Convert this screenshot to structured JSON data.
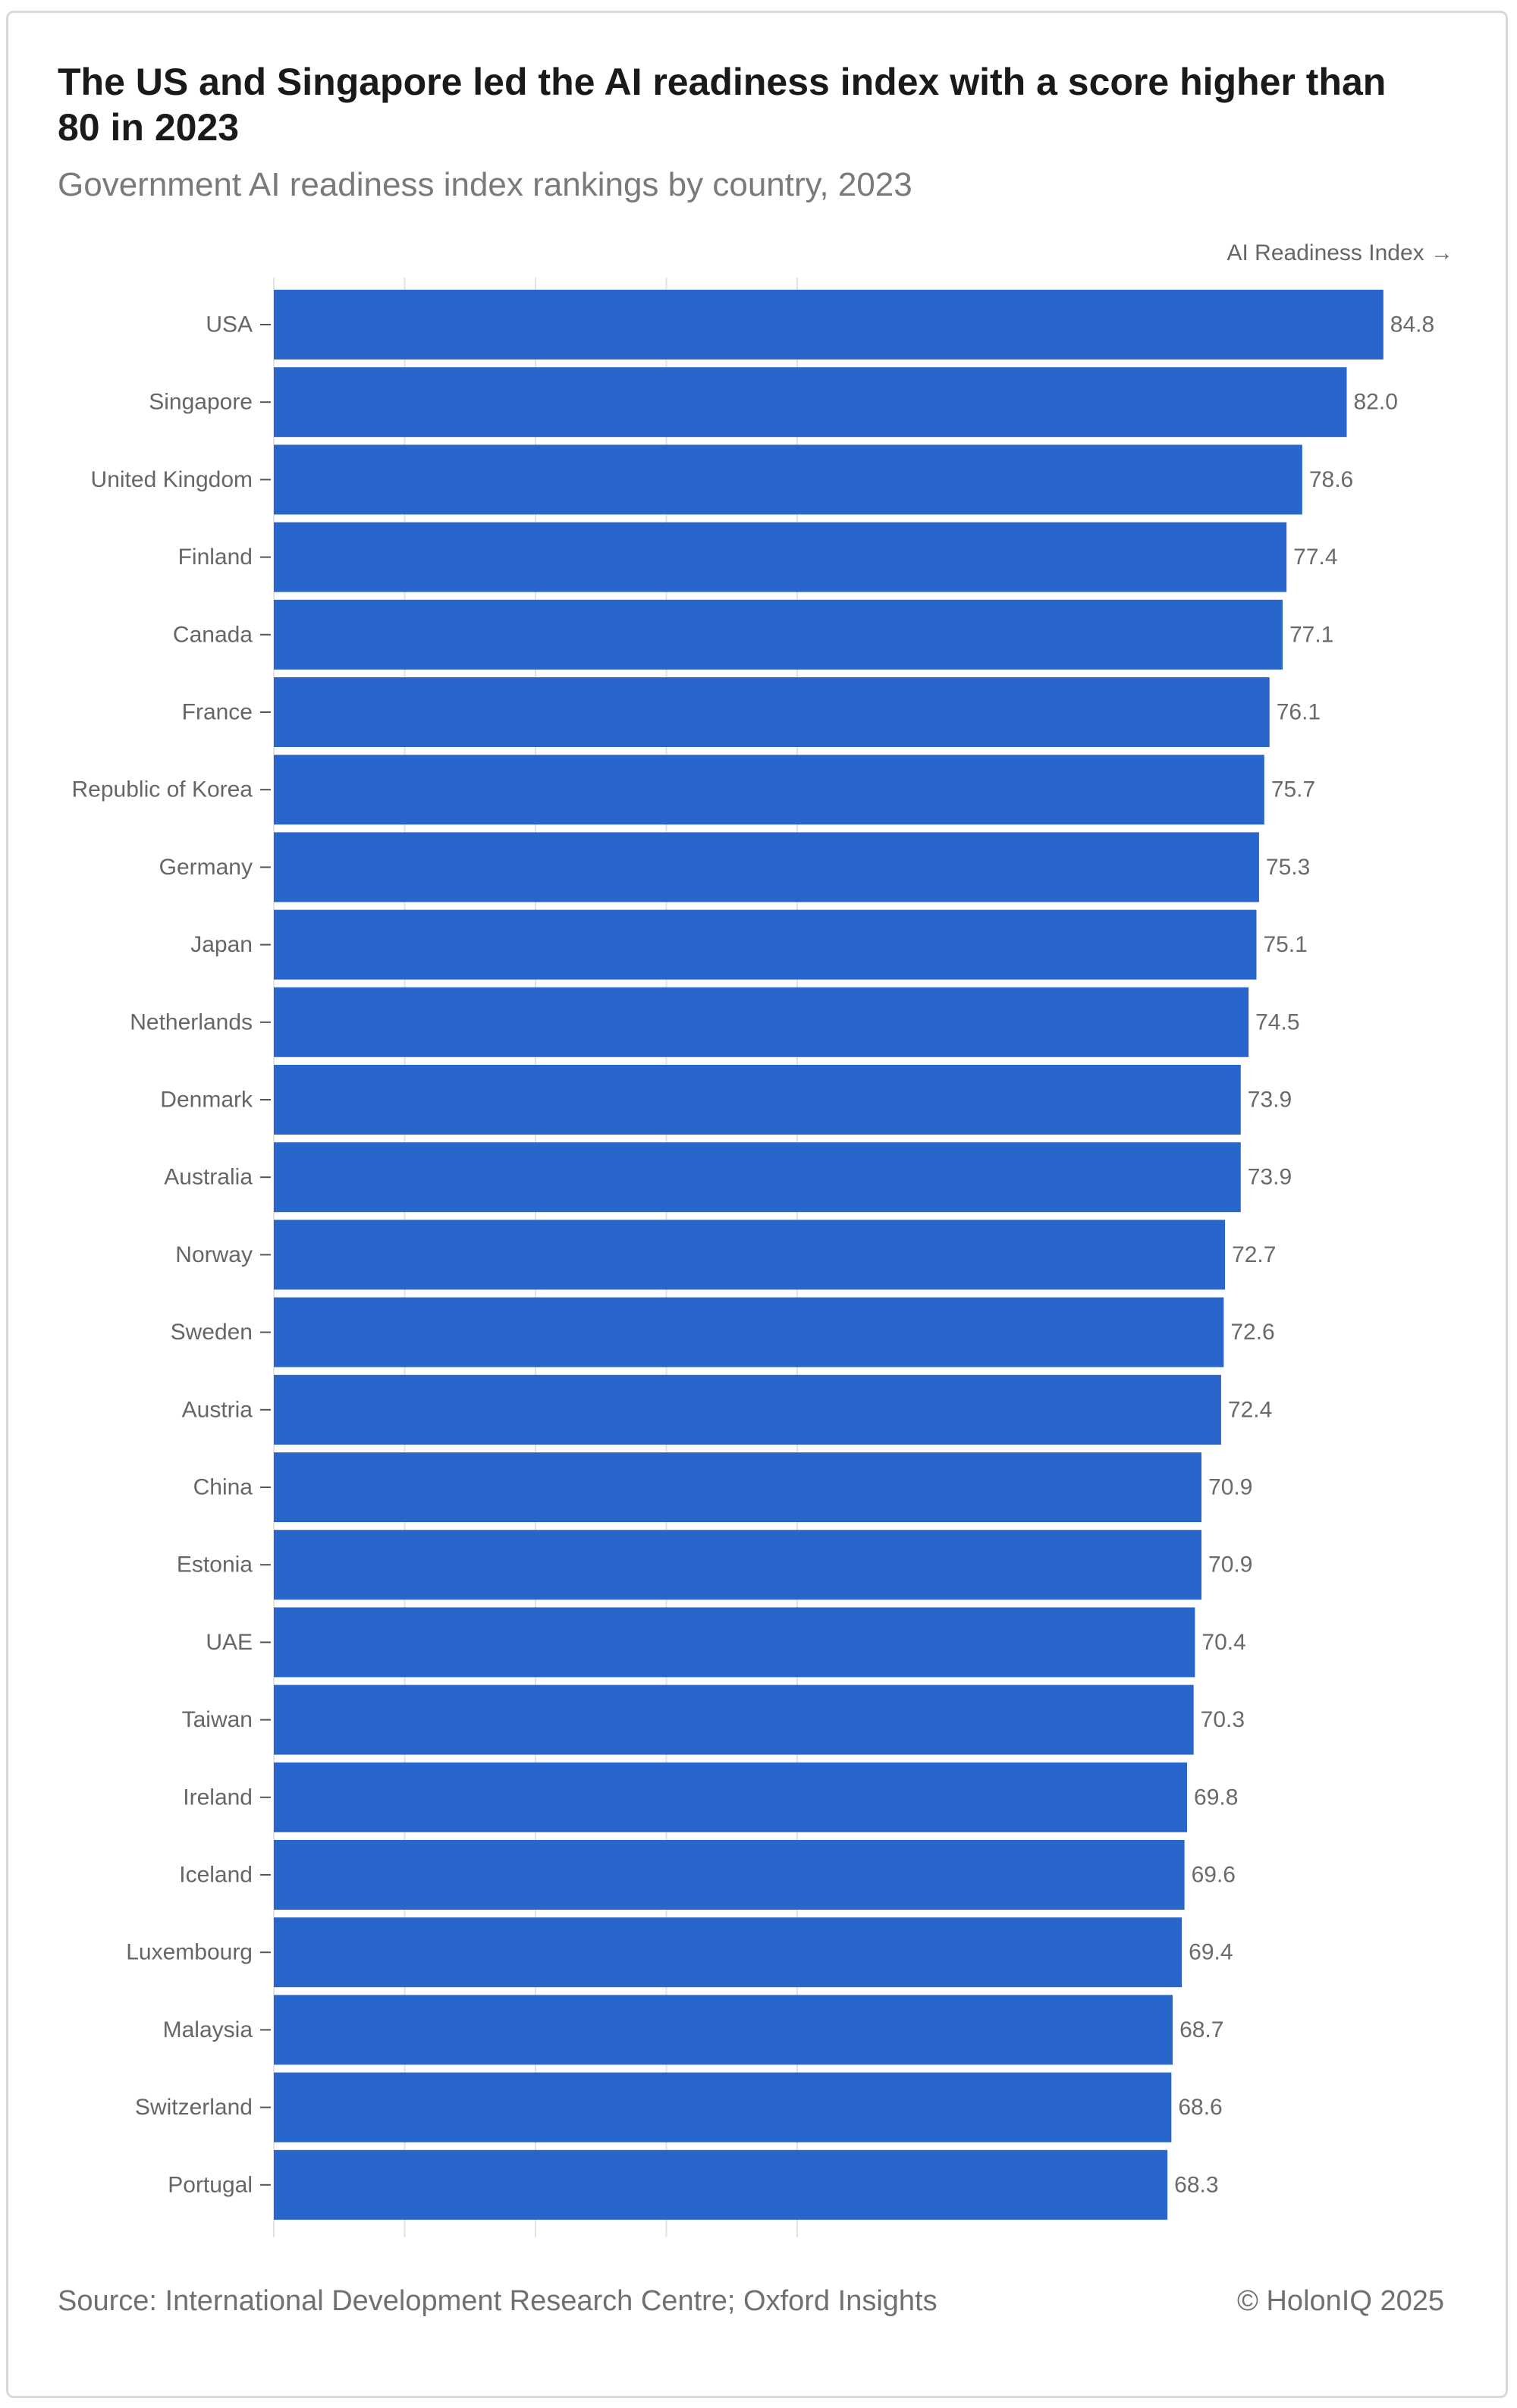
{
  "header": {
    "title": "The US and Singapore led the AI readiness index with a score higher than 80 in 2023",
    "subtitle": "Government AI readiness index rankings by country, 2023"
  },
  "footer": {
    "source": "Source: International Development Research Centre; Oxford Insights",
    "credit": "© HolonIQ 2025"
  },
  "colors": {
    "bar": "#2966cc",
    "grid": "#e3e3e3",
    "tick_label": "#666666",
    "value_label": "#6a6a6a"
  },
  "chart_data": {
    "type": "bar",
    "orientation": "horizontal",
    "title": "The US and Singapore led the AI readiness index with a score higher than 80 in 2023",
    "subtitle": "Government AI readiness index rankings by country, 2023",
    "xlabel": "AI Readiness Index →",
    "ylabel": "",
    "xlim": [
      0,
      100
    ],
    "grid": true,
    "legend": "none",
    "categories": [
      "USA",
      "Singapore",
      "United Kingdom",
      "Finland",
      "Canada",
      "France",
      "Republic of Korea",
      "Germany",
      "Japan",
      "Netherlands",
      "Denmark",
      "Australia",
      "Norway",
      "Sweden",
      "Austria",
      "China",
      "Estonia",
      "UAE",
      "Taiwan",
      "Ireland",
      "Iceland",
      "Luxembourg",
      "Malaysia",
      "Switzerland",
      "Portugal"
    ],
    "values": [
      84.8,
      82.0,
      78.6,
      77.4,
      77.1,
      76.1,
      75.7,
      75.3,
      75.1,
      74.5,
      73.9,
      73.9,
      72.7,
      72.6,
      72.4,
      70.9,
      70.9,
      70.4,
      70.3,
      69.8,
      69.6,
      69.4,
      68.7,
      68.6,
      68.3
    ],
    "value_labels": [
      "84.8",
      "82.0",
      "78.6",
      "77.4",
      "77.1",
      "76.1",
      "75.7",
      "75.3",
      "75.1",
      "74.5",
      "73.9",
      "73.9",
      "72.7",
      "72.6",
      "72.4",
      "70.9",
      "70.9",
      "70.4",
      "70.3",
      "69.8",
      "69.6",
      "69.4",
      "68.7",
      "68.6",
      "68.3"
    ]
  }
}
